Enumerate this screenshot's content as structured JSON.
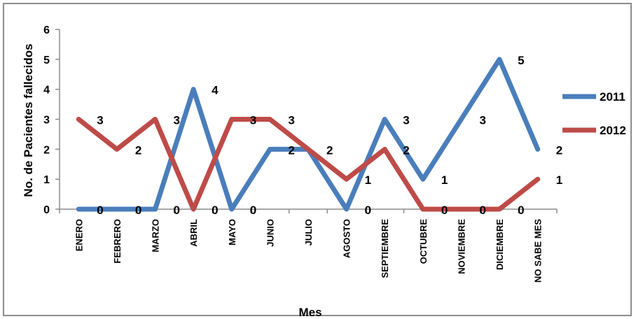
{
  "chart_data": {
    "type": "line",
    "title": "",
    "xlabel": "Mes",
    "ylabel": "No. de Pacientes fallecidos",
    "ylim": [
      0,
      6
    ],
    "yticks": [
      0,
      1,
      2,
      3,
      4,
      5,
      6
    ],
    "grid": false,
    "legend_position": "right",
    "categories": [
      "ENERO",
      "FEBRERO",
      "MARZO",
      "ABRIL",
      "MAYO",
      "JUNIO",
      "JULIO",
      "AGOSTO",
      "SEPTIEMBRE",
      "OCTUBRE",
      "NOVIEMBRE",
      "DICIEMBRE",
      "NO SABE MES"
    ],
    "series": [
      {
        "name": "2011",
        "color": "#4a7ebb",
        "values": [
          0,
          0,
          0,
          4,
          0,
          2,
          2,
          0,
          3,
          1,
          3,
          5,
          2
        ],
        "labels": [
          "0",
          "0",
          "0",
          "4",
          "0",
          "2",
          "",
          "0",
          "3",
          "1",
          "3",
          "5",
          "2"
        ]
      },
      {
        "name": "2012",
        "color": "#be4b48",
        "values": [
          3,
          2,
          3,
          0,
          3,
          3,
          2,
          1,
          2,
          0,
          0,
          0,
          1
        ],
        "labels": [
          "3",
          "2",
          "3",
          "0",
          "3",
          "3",
          "2",
          "1",
          "2",
          "0",
          "0",
          "0",
          "1"
        ]
      }
    ]
  }
}
